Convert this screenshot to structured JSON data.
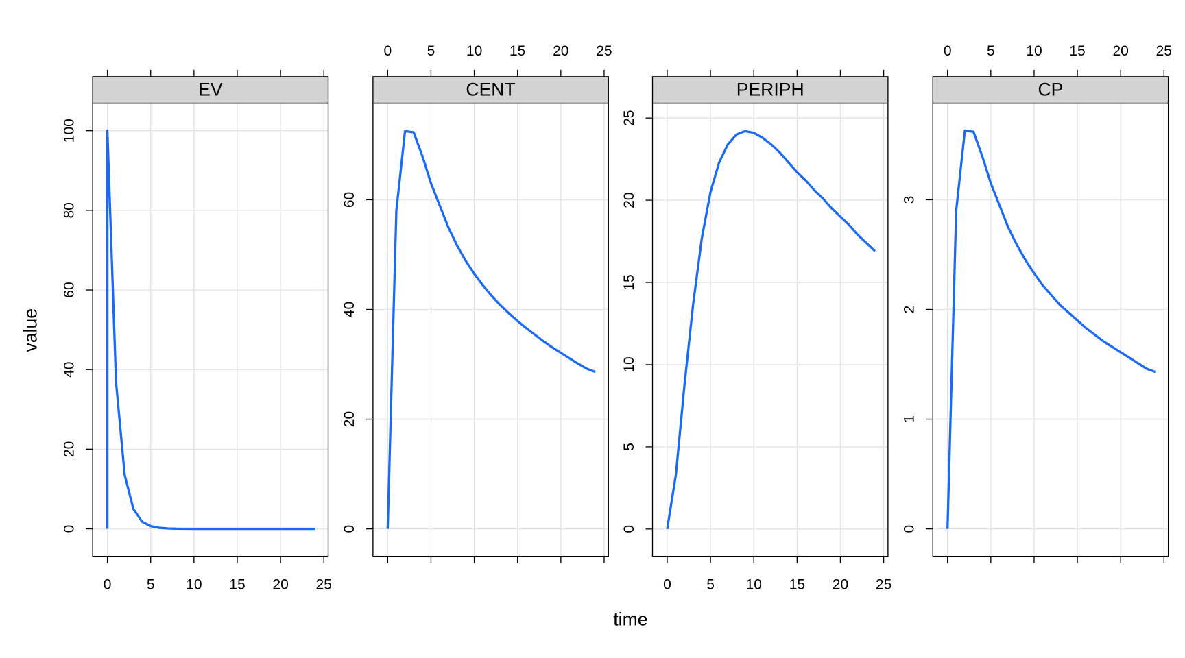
{
  "chart_data": {
    "type": "line",
    "xlabel": "time",
    "ylabel": "value",
    "color": "#1a6af5",
    "grid": true,
    "x": [
      0,
      0,
      1,
      2,
      3,
      4,
      5,
      6,
      7,
      8,
      9,
      10,
      11,
      12,
      13,
      14,
      15,
      16,
      17,
      18,
      19,
      20,
      21,
      22,
      23,
      24
    ],
    "xlim": [
      -1.7,
      25.5
    ],
    "xticks": [
      0,
      5,
      10,
      15,
      20,
      25
    ],
    "panels": [
      {
        "title": "EV",
        "ylim": [
          -6.9,
          106.9
        ],
        "yticks": [
          0,
          20,
          40,
          60,
          80,
          100
        ],
        "values": [
          0,
          100,
          36.8,
          13.5,
          5,
          1.8,
          0.67,
          0.25,
          0.09,
          0.03,
          0.01,
          0,
          0,
          0,
          0,
          0,
          0,
          0,
          0,
          0,
          0,
          0,
          0,
          0,
          0,
          0
        ]
      },
      {
        "title": "CENT",
        "ylim": [
          -5,
          77.6
        ],
        "yticks": [
          0,
          20,
          40,
          60
        ],
        "values": [
          0,
          0,
          58,
          72.5,
          72.3,
          68,
          63,
          59,
          55,
          51.7,
          48.9,
          46.5,
          44.4,
          42.5,
          40.8,
          39.3,
          37.9,
          36.6,
          35.4,
          34.2,
          33.1,
          32.1,
          31.1,
          30.1,
          29.2,
          28.6
        ]
      },
      {
        "title": "PERIPH",
        "ylim": [
          -1.66,
          25.9
        ],
        "yticks": [
          0,
          5,
          10,
          15,
          20,
          25
        ],
        "values": [
          0,
          0,
          3.3,
          8.8,
          13.7,
          17.7,
          20.5,
          22.3,
          23.4,
          24.0,
          24.2,
          24.1,
          23.8,
          23.4,
          22.9,
          22.3,
          21.7,
          21.2,
          20.6,
          20.1,
          19.5,
          19.0,
          18.5,
          17.9,
          17.4,
          16.9
        ]
      },
      {
        "title": "CP",
        "ylim": [
          -0.25,
          3.88
        ],
        "yticks": [
          0,
          1,
          2,
          3
        ],
        "values": [
          0,
          0,
          2.9,
          3.63,
          3.62,
          3.4,
          3.15,
          2.95,
          2.75,
          2.59,
          2.45,
          2.33,
          2.22,
          2.13,
          2.04,
          1.97,
          1.9,
          1.83,
          1.77,
          1.71,
          1.66,
          1.61,
          1.56,
          1.51,
          1.46,
          1.43
        ]
      }
    ]
  }
}
